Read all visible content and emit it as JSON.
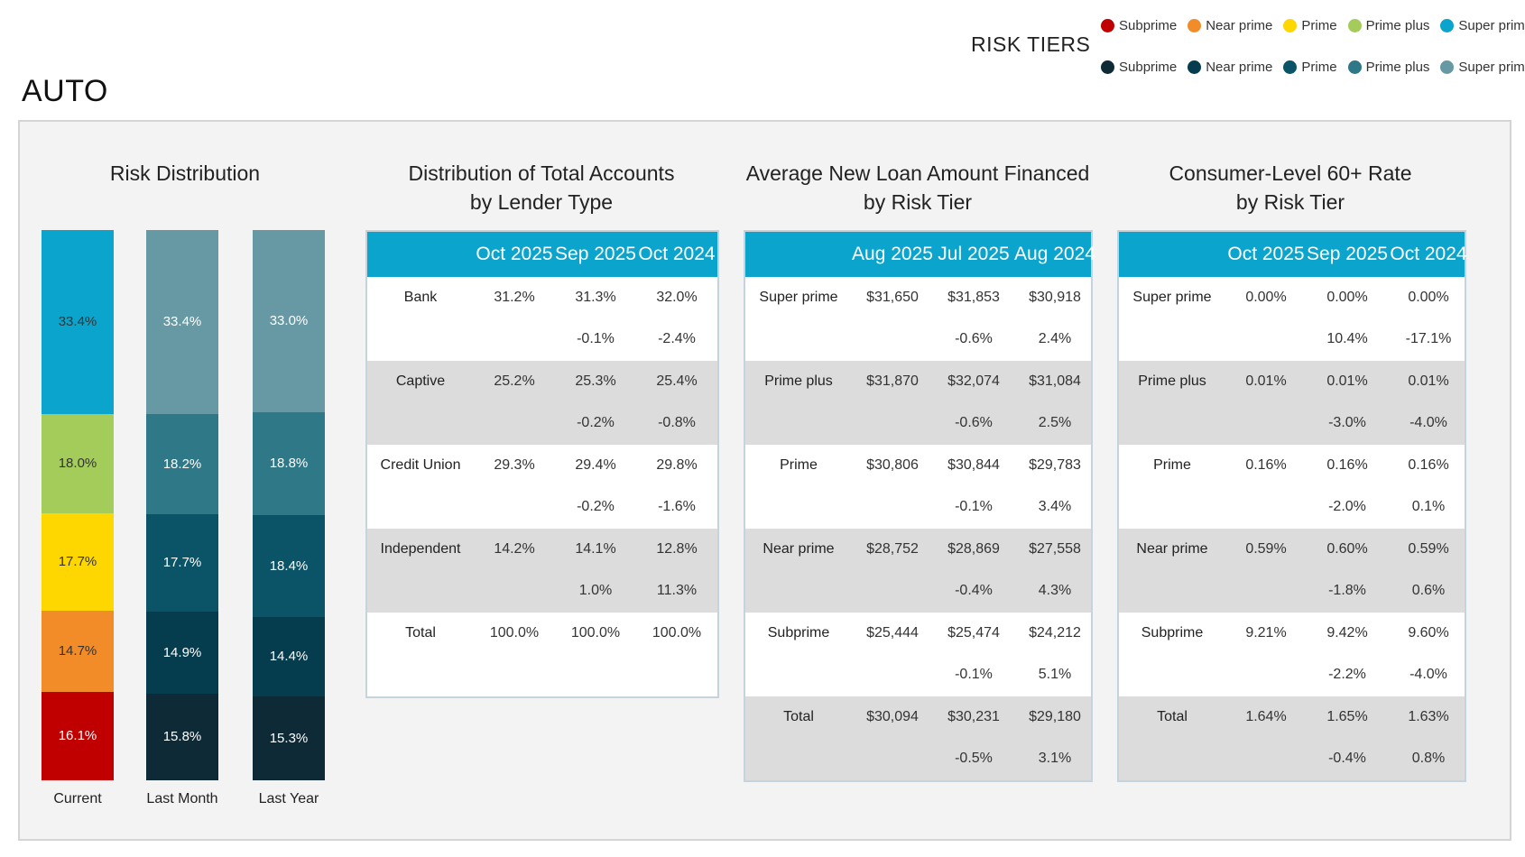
{
  "header": {
    "title": "AUTO",
    "legend_title": "RISK TIERS"
  },
  "legend": {
    "row1": [
      {
        "label": "Subprime",
        "color": "#c00000"
      },
      {
        "label": "Near prime",
        "color": "#f28c28"
      },
      {
        "label": "Prime",
        "color": "#ffd700"
      },
      {
        "label": "Prime plus",
        "color": "#a4cc5a"
      },
      {
        "label": "Super prime",
        "color": "#0aa4cc"
      }
    ],
    "row2": [
      {
        "label": "Subprime",
        "color": "#0d2a36"
      },
      {
        "label": "Near prime",
        "color": "#053c4e"
      },
      {
        "label": "Prime",
        "color": "#0b5366"
      },
      {
        "label": "Prime plus",
        "color": "#2e7888"
      },
      {
        "label": "Super prime",
        "color": "#6699a4"
      }
    ]
  },
  "chart_data": {
    "type": "bar",
    "subtype": "stacked-100",
    "title": "Risk Distribution",
    "categories": [
      "Current",
      "Last Month",
      "Last Year"
    ],
    "tiers_bottom_to_top": [
      "Subprime",
      "Near prime",
      "Prime",
      "Prime plus",
      "Super prime"
    ],
    "series": [
      {
        "name": "Subprime",
        "values": [
          16.1,
          15.8,
          15.3
        ],
        "labels": [
          "16.1%",
          "15.8%",
          "15.3%"
        ]
      },
      {
        "name": "Near prime",
        "values": [
          14.7,
          14.9,
          14.4
        ],
        "labels": [
          "14.7%",
          "14.9%",
          "14.4%"
        ]
      },
      {
        "name": "Prime",
        "values": [
          17.7,
          17.7,
          18.4
        ],
        "labels": [
          "17.7%",
          "17.7%",
          "18.4%"
        ]
      },
      {
        "name": "Prime plus",
        "values": [
          18.0,
          18.2,
          18.8
        ],
        "labels": [
          "18.0%",
          "18.2%",
          "18.8%"
        ]
      },
      {
        "name": "Super prime",
        "values": [
          33.4,
          33.4,
          33.0
        ],
        "labels": [
          "33.4%",
          "33.4%",
          "33.0%"
        ]
      }
    ],
    "palettes": {
      "Current": [
        "#c00000",
        "#f28c28",
        "#ffd700",
        "#a4cc5a",
        "#0aa4cc"
      ],
      "Last Month": [
        "#0d2a36",
        "#053c4e",
        "#0b5366",
        "#2e7888",
        "#6699a4"
      ],
      "Last Year": [
        "#0d2a36",
        "#053c4e",
        "#0b5366",
        "#2e7888",
        "#6699a4"
      ]
    },
    "label_colors": {
      "Current": [
        "#ffffff",
        "#333333",
        "#333333",
        "#333333",
        "#333333"
      ],
      "Last Month": [
        "#ffffff",
        "#ffffff",
        "#ffffff",
        "#ffffff",
        "#ffffff"
      ],
      "Last Year": [
        "#ffffff",
        "#ffffff",
        "#ffffff",
        "#ffffff",
        "#ffffff"
      ]
    }
  },
  "tables": [
    {
      "title": "Distribution of Total Accounts\nby Lender Type",
      "headers": [
        "Oct 2025",
        "Sep 2025",
        "Oct 2024"
      ],
      "rows": [
        {
          "label": "Bank",
          "values": [
            "31.2%",
            "31.3%",
            "32.0%"
          ],
          "changes": [
            "",
            "-0.1%",
            "-2.4%"
          ]
        },
        {
          "label": "Captive",
          "values": [
            "25.2%",
            "25.3%",
            "25.4%"
          ],
          "changes": [
            "",
            "-0.2%",
            "-0.8%"
          ]
        },
        {
          "label": "Credit Union",
          "values": [
            "29.3%",
            "29.4%",
            "29.8%"
          ],
          "changes": [
            "",
            "-0.2%",
            "-1.6%"
          ]
        },
        {
          "label": "Independent",
          "values": [
            "14.2%",
            "14.1%",
            "12.8%"
          ],
          "changes": [
            "",
            "1.0%",
            "11.3%"
          ]
        },
        {
          "label": "Total",
          "values": [
            "100.0%",
            "100.0%",
            "100.0%"
          ],
          "changes": [
            "",
            "",
            ""
          ]
        }
      ]
    },
    {
      "title": "Average New Loan Amount Financed\nby Risk Tier",
      "headers": [
        "Aug 2025",
        "Jul 2025",
        "Aug 2024"
      ],
      "rows": [
        {
          "label": "Super prime",
          "values": [
            "$31,650",
            "$31,853",
            "$30,918"
          ],
          "changes": [
            "",
            "-0.6%",
            "2.4%"
          ]
        },
        {
          "label": "Prime plus",
          "values": [
            "$31,870",
            "$32,074",
            "$31,084"
          ],
          "changes": [
            "",
            "-0.6%",
            "2.5%"
          ]
        },
        {
          "label": "Prime",
          "values": [
            "$30,806",
            "$30,844",
            "$29,783"
          ],
          "changes": [
            "",
            "-0.1%",
            "3.4%"
          ]
        },
        {
          "label": "Near prime",
          "values": [
            "$28,752",
            "$28,869",
            "$27,558"
          ],
          "changes": [
            "",
            "-0.4%",
            "4.3%"
          ]
        },
        {
          "label": "Subprime",
          "values": [
            "$25,444",
            "$25,474",
            "$24,212"
          ],
          "changes": [
            "",
            "-0.1%",
            "5.1%"
          ]
        },
        {
          "label": "Total",
          "values": [
            "$30,094",
            "$30,231",
            "$29,180"
          ],
          "changes": [
            "",
            "-0.5%",
            "3.1%"
          ]
        }
      ]
    },
    {
      "title": "Consumer-Level 60+ Rate\nby Risk Tier",
      "headers": [
        "Oct 2025",
        "Sep 2025",
        "Oct 2024"
      ],
      "rows": [
        {
          "label": "Super prime",
          "values": [
            "0.00%",
            "0.00%",
            "0.00%"
          ],
          "changes": [
            "",
            "10.4%",
            "-17.1%"
          ]
        },
        {
          "label": "Prime plus",
          "values": [
            "0.01%",
            "0.01%",
            "0.01%"
          ],
          "changes": [
            "",
            "-3.0%",
            "-4.0%"
          ]
        },
        {
          "label": "Prime",
          "values": [
            "0.16%",
            "0.16%",
            "0.16%"
          ],
          "changes": [
            "",
            "-2.0%",
            "0.1%"
          ]
        },
        {
          "label": "Near prime",
          "values": [
            "0.59%",
            "0.60%",
            "0.59%"
          ],
          "changes": [
            "",
            "-1.8%",
            "0.6%"
          ]
        },
        {
          "label": "Subprime",
          "values": [
            "9.21%",
            "9.42%",
            "9.60%"
          ],
          "changes": [
            "",
            "-2.2%",
            "-4.0%"
          ]
        },
        {
          "label": "Total",
          "values": [
            "1.64%",
            "1.65%",
            "1.63%"
          ],
          "changes": [
            "",
            "-0.4%",
            "0.8%"
          ]
        }
      ]
    }
  ]
}
